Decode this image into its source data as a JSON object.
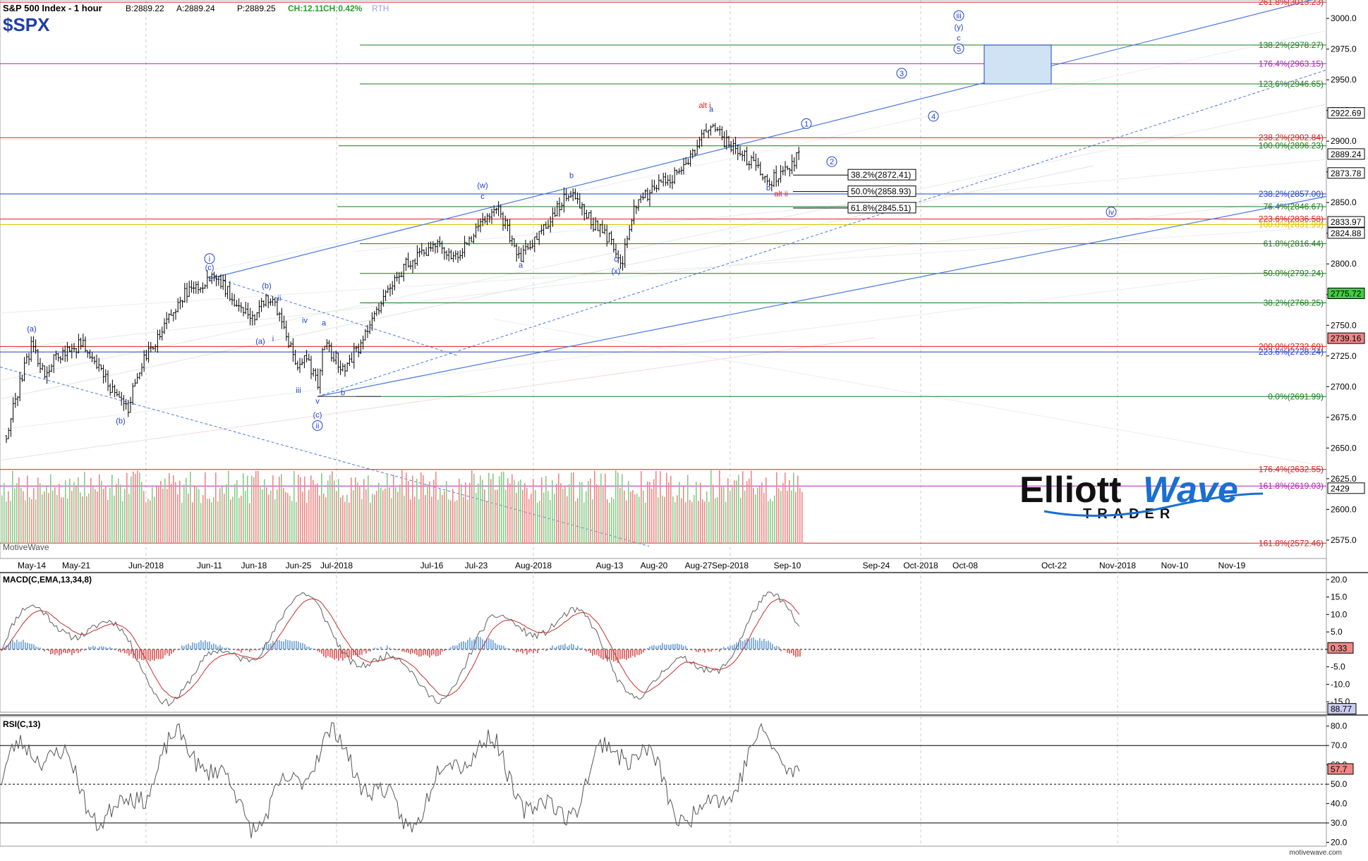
{
  "header": {
    "title": "S&P 500 Index - 1 hour",
    "bid": "B:2889.22",
    "ask": "A:2889.24",
    "price": "P:2889.25",
    "change": "CH:12.11",
    "change_pct": "CH:0.42%",
    "session": "RTH",
    "symbol": "$SPX"
  },
  "watermark": "MotiveWave",
  "footer_brand": "motivewave.com",
  "logo": {
    "word1": "Elliott",
    "word2": "Wave",
    "word3": "TRADER"
  },
  "colors": {
    "up_bar": "#000000",
    "fib_green": "#1b7a1b",
    "fib_red": "#d62020",
    "fib_blue": "#1f3fd0",
    "fib_magenta": "#b020b0",
    "fib_yellow": "#e0c000",
    "wave_blue": "#1f3fd0",
    "wave_red": "#d62020",
    "channel_blue": "#4a78e0",
    "volume_up": "#88cc88",
    "volume_down": "#ee8888",
    "macd_line": "#606060",
    "macd_signal": "#c03030",
    "hist_up": "#7aaad8",
    "hist_down": "#e06060",
    "rsi_line": "#555555",
    "target_box": "#cfe3f5"
  },
  "chart_data": [
    {
      "type": "line",
      "name": "S&P 500 Index - 1 hour",
      "y_axis": {
        "min": 2560,
        "max": 3015,
        "ticks": [
          2575.0,
          2600.0,
          2625.0,
          2650.0,
          2675.0,
          2700.0,
          2725.0,
          2750.0,
          2775.0,
          2800.0,
          2825.0,
          2850.0,
          2875.0,
          2900.0,
          2925.0,
          2950.0,
          2975.0,
          3000.0
        ]
      },
      "x_labels": [
        "May-14",
        "May-21",
        "Jun-2018",
        "Jun-11",
        "Jun-18",
        "Jun-25",
        "Jul-2018",
        "Jul-16",
        "Jul-23",
        "Aug-2018",
        "Aug-13",
        "Aug-20",
        "Aug-27",
        "Sep-2018",
        "Sep-10",
        "Sep-24",
        "Oct-2018",
        "Oct-08",
        "Oct-22",
        "Nov-2018",
        "Nov-10",
        "Nov-19"
      ],
      "price_path": [
        {
          "d": "May-10",
          "v": 2660
        },
        {
          "d": "May-12",
          "v": 2700
        },
        {
          "d": "May-14",
          "v": 2735
        },
        {
          "d": "May-16",
          "v": 2710
        },
        {
          "d": "May-18",
          "v": 2725
        },
        {
          "d": "May-22",
          "v": 2735
        },
        {
          "d": "May-25",
          "v": 2710
        },
        {
          "d": "May-29",
          "v": 2680
        },
        {
          "d": "May-31",
          "v": 2715
        },
        {
          "d": "Jun-04",
          "v": 2750
        },
        {
          "d": "Jun-07",
          "v": 2775
        },
        {
          "d": "Jun-12",
          "v": 2790
        },
        {
          "d": "Jun-15",
          "v": 2770
        },
        {
          "d": "Jun-18",
          "v": 2755
        },
        {
          "d": "Jun-20",
          "v": 2775
        },
        {
          "d": "Jun-22",
          "v": 2760
        },
        {
          "d": "Jun-25",
          "v": 2710
        },
        {
          "d": "Jun-26",
          "v": 2730
        },
        {
          "d": "Jun-28",
          "v": 2700
        },
        {
          "d": "Jun-29",
          "v": 2735
        },
        {
          "d": "Jul-02",
          "v": 2715
        },
        {
          "d": "Jul-05",
          "v": 2735
        },
        {
          "d": "Jul-09",
          "v": 2780
        },
        {
          "d": "Jul-12",
          "v": 2800
        },
        {
          "d": "Jul-17",
          "v": 2815
        },
        {
          "d": "Jul-20",
          "v": 2805
        },
        {
          "d": "Jul-26",
          "v": 2848
        },
        {
          "d": "Jul-30",
          "v": 2805
        },
        {
          "d": "Aug-02",
          "v": 2825
        },
        {
          "d": "Aug-07",
          "v": 2860
        },
        {
          "d": "Aug-10",
          "v": 2835
        },
        {
          "d": "Aug-13",
          "v": 2820
        },
        {
          "d": "Aug-15",
          "v": 2802
        },
        {
          "d": "Aug-17",
          "v": 2848
        },
        {
          "d": "Aug-21",
          "v": 2865
        },
        {
          "d": "Aug-24",
          "v": 2875
        },
        {
          "d": "Aug-27",
          "v": 2898
        },
        {
          "d": "Aug-29",
          "v": 2915
        },
        {
          "d": "Aug-31",
          "v": 2900
        },
        {
          "d": "Sep-05",
          "v": 2880
        },
        {
          "d": "Sep-07",
          "v": 2866
        },
        {
          "d": "Sep-10",
          "v": 2878
        },
        {
          "d": "Sep-12",
          "v": 2889
        }
      ]
    },
    {
      "type": "line",
      "name": "MACD(C,EMA,13,34,8)",
      "y_axis": {
        "min": -18,
        "max": 22,
        "ticks": [
          20.0,
          15.0,
          10.0,
          5.0,
          0.0,
          -5.0,
          -10.0,
          -15.0
        ]
      },
      "current_value": 0.33
    },
    {
      "type": "line",
      "name": "RSI(C,13)",
      "y_axis": {
        "min": 18,
        "max": 85,
        "ticks": [
          80.0,
          70.0,
          60.0,
          50.0,
          40.0,
          30.0,
          20.0
        ]
      },
      "current_value": 57.7,
      "max_marker": 88.77
    }
  ],
  "fib_levels": [
    {
      "label": "261.8%(3013.23)",
      "value": 3013.23,
      "color": "red"
    },
    {
      "label": "138.2%(2978.27)",
      "value": 2978.27,
      "color": "green"
    },
    {
      "label": "176.4%(2963.15)",
      "value": 2963.15,
      "color": "magenta"
    },
    {
      "label": "123.6%(2946.65)",
      "value": 2946.65,
      "color": "green"
    },
    {
      "label": "238.2%(2902.84)",
      "value": 2902.84,
      "color": "red"
    },
    {
      "label": "100.0%(2896.23)",
      "value": 2896.23,
      "color": "green"
    },
    {
      "label": "238.2%(2857.00)",
      "value": 2857.0,
      "color": "blue"
    },
    {
      "label": "76.4%(2846.67)",
      "value": 2846.67,
      "color": "green"
    },
    {
      "label": "223.6%(2836.58)",
      "value": 2836.58,
      "color": "red"
    },
    {
      "label": "100.0%(2831.99)",
      "value": 2831.99,
      "color": "yellow"
    },
    {
      "label": "61.8%(2816.44)",
      "value": 2816.44,
      "color": "green"
    },
    {
      "label": "50.0%(2792.24)",
      "value": 2792.24,
      "color": "green"
    },
    {
      "label": "38.2%(2768.25)",
      "value": 2768.25,
      "color": "green"
    },
    {
      "label": "200.0%(2732.69)",
      "value": 2732.69,
      "color": "red"
    },
    {
      "label": "223.6%(2728.24)",
      "value": 2728.24,
      "color": "blue"
    },
    {
      "label": "0.0%(2691.99)",
      "value": 2691.99,
      "color": "green"
    },
    {
      "label": "176.4%(2632.55)",
      "value": 2632.55,
      "color": "red"
    },
    {
      "label": "161.8%(2619.03)",
      "value": 2619.03,
      "color": "magenta"
    },
    {
      "label": "161.8%(2572.46)",
      "value": 2572.46,
      "color": "red"
    }
  ],
  "retrace_boxes": [
    {
      "label": "38.2%(2872.41)",
      "value": 2872.41
    },
    {
      "label": "50.0%(2858.93)",
      "value": 2858.93
    },
    {
      "label": "61.8%(2845.51)",
      "value": 2845.51
    }
  ],
  "price_tags": [
    {
      "label": "2922.69",
      "value": 2922.69,
      "bg": "#ffffff"
    },
    {
      "label": "2889.24",
      "value": 2889.24,
      "bg": "#ffffff"
    },
    {
      "label": "2873.78",
      "value": 2873.78,
      "bg": "#ffffff"
    },
    {
      "label": "2833.97",
      "value": 2833.97,
      "bg": "#ffffff"
    },
    {
      "label": "2824.88",
      "value": 2824.88,
      "bg": "#ffffff"
    },
    {
      "label": "2775.72",
      "value": 2775.72,
      "bg": "#44cc44"
    },
    {
      "label": "2739.16",
      "value": 2739.16,
      "bg": "#ee8888"
    },
    {
      "label": "2429",
      "value": 2617,
      "bg": "#ffffff"
    }
  ],
  "wave_labels": [
    {
      "t": "(a)",
      "d": "May-14",
      "v": 2745,
      "c": "blue"
    },
    {
      "t": "(b)",
      "d": "May-28",
      "v": 2670,
      "c": "blue"
    },
    {
      "t": "i",
      "d": "Jun-11",
      "v": 2802,
      "c": "blue",
      "circle": true
    },
    {
      "t": "(c)",
      "d": "Jun-11",
      "v": 2795,
      "c": "blue"
    },
    {
      "t": "(b)",
      "d": "Jun-20",
      "v": 2780,
      "c": "blue"
    },
    {
      "t": "(a)",
      "d": "Jun-19",
      "v": 2735,
      "c": "blue"
    },
    {
      "t": "ii",
      "d": "Jun-22",
      "v": 2770,
      "c": "blue"
    },
    {
      "t": "i",
      "d": "Jun-21",
      "v": 2737,
      "c": "blue"
    },
    {
      "t": "iv",
      "d": "Jun-26",
      "v": 2752,
      "c": "blue"
    },
    {
      "t": "iii",
      "d": "Jun-25",
      "v": 2695,
      "c": "blue"
    },
    {
      "t": "a",
      "d": "Jun-29",
      "v": 2750,
      "c": "blue"
    },
    {
      "t": "v",
      "d": "Jun-28",
      "v": 2686,
      "c": "blue"
    },
    {
      "t": "b",
      "d": "Jul-02",
      "v": 2693,
      "c": "blue"
    },
    {
      "t": "(c)",
      "d": "Jun-28",
      "v": 2675,
      "c": "blue"
    },
    {
      "t": "ii",
      "d": "Jun-28",
      "v": 2666,
      "c": "blue",
      "circle": true
    },
    {
      "t": "(w)",
      "d": "Jul-24",
      "v": 2862,
      "c": "blue"
    },
    {
      "t": "c",
      "d": "Jul-24",
      "v": 2853,
      "c": "blue"
    },
    {
      "t": "a",
      "d": "Jul-30",
      "v": 2797,
      "c": "blue"
    },
    {
      "t": "b",
      "d": "Aug-07",
      "v": 2870,
      "c": "blue"
    },
    {
      "t": "c",
      "d": "Aug-14",
      "v": 2802,
      "c": "blue"
    },
    {
      "t": "(x)",
      "d": "Aug-14",
      "v": 2792,
      "c": "blue"
    },
    {
      "t": "alt i",
      "d": "Aug-28",
      "v": 2927,
      "c": "red"
    },
    {
      "t": "a",
      "d": "Aug-29",
      "v": 2924,
      "c": "blue"
    },
    {
      "t": "b",
      "d": "Sep-07",
      "v": 2860,
      "c": "blue"
    },
    {
      "t": "alt ii",
      "d": "Sep-09",
      "v": 2855,
      "c": "red"
    },
    {
      "t": "1",
      "d": "Sep-13",
      "v": 2912,
      "c": "blue",
      "circle": true
    },
    {
      "t": "2",
      "d": "Sep-17",
      "v": 2881,
      "c": "blue",
      "circle": true
    },
    {
      "t": "3",
      "d": "Sep-28",
      "v": 2953,
      "c": "blue",
      "circle": true
    },
    {
      "t": "4",
      "d": "Oct-03",
      "v": 2918,
      "c": "blue",
      "circle": true
    },
    {
      "t": "iii",
      "d": "Oct-07",
      "v": 3000,
      "c": "blue",
      "circle": true
    },
    {
      "t": "(y)",
      "d": "Oct-07",
      "v": 2991,
      "c": "blue"
    },
    {
      "t": "c",
      "d": "Oct-07",
      "v": 2982,
      "c": "blue"
    },
    {
      "t": "5",
      "d": "Oct-07",
      "v": 2973,
      "c": "blue",
      "circle": true
    },
    {
      "t": "iv",
      "d": "Oct-31",
      "v": 2840,
      "c": "blue",
      "circle": true
    }
  ]
}
